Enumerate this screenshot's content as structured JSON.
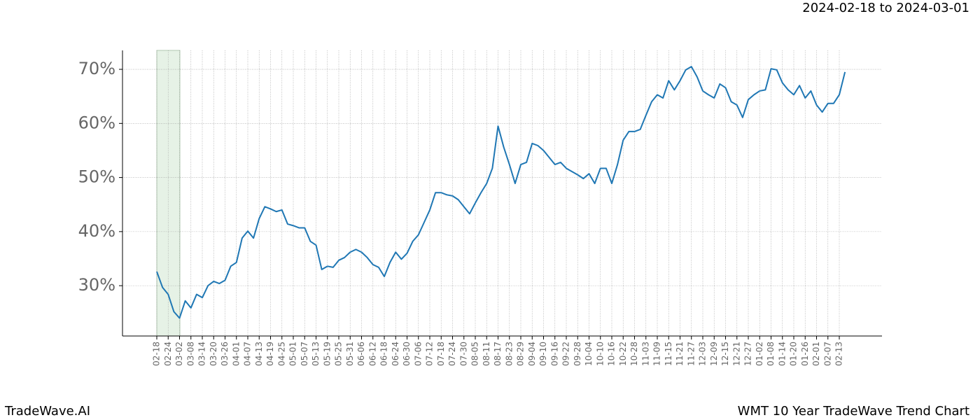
{
  "chart_data": {
    "type": "line",
    "title": "2024-02-18 to 2024-03-01",
    "footer_left": "TradeWave.AI",
    "footer_right": "WMT 10 Year TradeWave Trend Chart",
    "categories": [
      "02-18",
      null,
      "02-24",
      null,
      "03-02",
      null,
      "03-08",
      null,
      "03-14",
      null,
      "03-20",
      null,
      "03-26",
      null,
      "04-01",
      null,
      "04-07",
      null,
      "04-13",
      null,
      "04-19",
      null,
      "04-25",
      null,
      "05-01",
      null,
      "05-07",
      null,
      "05-13",
      null,
      "05-19",
      null,
      "05-25",
      null,
      "05-31",
      null,
      "06-06",
      null,
      "06-12",
      null,
      "06-18",
      null,
      "06-24",
      null,
      "06-30",
      null,
      "07-06",
      null,
      "07-12",
      null,
      "07-18",
      null,
      "07-24",
      null,
      "07-30",
      null,
      "08-05",
      null,
      "08-11",
      null,
      "08-17",
      null,
      "08-23",
      null,
      "08-29",
      null,
      "09-04",
      null,
      "09-10",
      null,
      "09-16",
      null,
      "09-22",
      null,
      "09-28",
      null,
      "10-04",
      null,
      "10-10",
      null,
      "10-16",
      null,
      "10-22",
      null,
      "10-28",
      null,
      "11-03",
      null,
      "11-09",
      null,
      "11-15",
      null,
      "11-21",
      null,
      "11-27",
      null,
      "12-03",
      null,
      "12-09",
      null,
      "12-15",
      null,
      "12-21",
      null,
      "12-27",
      null,
      "01-02",
      null,
      "01-08",
      null,
      "01-14",
      null,
      "01-20",
      null,
      "01-26",
      null,
      "02-01",
      null,
      "02-07",
      null,
      "02-13",
      null
    ],
    "series": [
      {
        "name": "WMT",
        "color": "#1f77b4",
        "values": [
          32.6,
          29.7,
          28.4,
          25.2,
          24.0,
          27.2,
          25.9,
          28.4,
          27.8,
          30.0,
          30.8,
          30.4,
          31.0,
          33.6,
          34.3,
          38.8,
          40.1,
          38.8,
          42.4,
          44.6,
          44.2,
          43.7,
          44.0,
          41.4,
          41.1,
          40.7,
          40.7,
          38.2,
          37.5,
          33.0,
          33.6,
          33.4,
          34.7,
          35.2,
          36.2,
          36.7,
          36.2,
          35.2,
          33.9,
          33.4,
          31.7,
          34.3,
          36.2,
          34.9,
          36.0,
          38.2,
          39.4,
          41.7,
          44.0,
          47.2,
          47.2,
          46.8,
          46.6,
          45.9,
          44.6,
          43.3,
          45.3,
          47.2,
          48.9,
          51.7,
          59.5,
          55.6,
          52.4,
          48.9,
          52.4,
          52.8,
          56.3,
          55.9,
          55.0,
          53.7,
          52.4,
          52.8,
          51.7,
          51.1,
          50.5,
          49.8,
          50.7,
          48.9,
          51.7,
          51.7,
          48.9,
          52.4,
          56.9,
          58.5,
          58.5,
          58.9,
          61.5,
          64.0,
          65.3,
          64.7,
          67.9,
          66.2,
          67.9,
          69.9,
          70.5,
          68.6,
          66.0,
          65.3,
          64.7,
          67.3,
          66.6,
          64.0,
          63.4,
          61.1,
          64.4,
          65.3,
          66.0,
          66.2,
          70.1,
          69.9,
          67.5,
          66.2,
          65.3,
          67.0,
          64.7,
          66.0,
          63.4,
          62.1,
          63.7,
          63.7,
          65.3,
          69.5
        ]
      }
    ],
    "ylim": [
      20.7,
      73.5
    ],
    "yticks": [
      {
        "value": 30,
        "label": "30%"
      },
      {
        "value": 40,
        "label": "40%"
      },
      {
        "value": 50,
        "label": "50%"
      },
      {
        "value": 60,
        "label": "60%"
      },
      {
        "value": 70,
        "label": "70%"
      }
    ],
    "grid": true
  }
}
